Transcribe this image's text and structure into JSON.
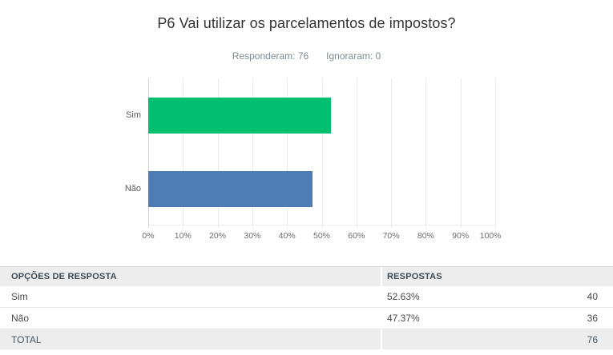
{
  "page": {
    "title": "P6 Vai utilizar os parcelamentos de impostos?",
    "answered_label": "Responderam: 76",
    "skipped_label": "Ignoraram: 0"
  },
  "chart_data": {
    "type": "bar",
    "orientation": "horizontal",
    "title": "P6 Vai utilizar os parcelamentos de impostos?",
    "answered": 76,
    "skipped": 0,
    "categories": [
      "Sim",
      "Não"
    ],
    "values": [
      52.63,
      47.37
    ],
    "counts": [
      40,
      36
    ],
    "value_unit": "percent",
    "xlim": [
      0,
      100
    ],
    "x_ticks": [
      "0%",
      "10%",
      "20%",
      "30%",
      "40%",
      "50%",
      "60%",
      "70%",
      "80%",
      "90%",
      "100%"
    ],
    "grid": true,
    "legend_position": "none",
    "bar_colors": [
      "#00BF6F",
      "#4E7CB5"
    ]
  },
  "table": {
    "headers": {
      "options": "OPÇÕES DE RESPOSTA",
      "responses": "RESPOSTAS"
    },
    "rows": [
      {
        "option": "Sim",
        "percent": "52.63%",
        "count": "40"
      },
      {
        "option": "Não",
        "percent": "47.37%",
        "count": "36"
      }
    ],
    "total": {
      "label": "TOTAL",
      "count": "76"
    }
  },
  "colors": {
    "bar_green": "#00BF6F",
    "bar_blue": "#4E7CB5",
    "gridline": "#e9e9e9",
    "axis_line": "#d5d5d5",
    "header_bg": "#ededed",
    "total_bg": "#ededed"
  }
}
